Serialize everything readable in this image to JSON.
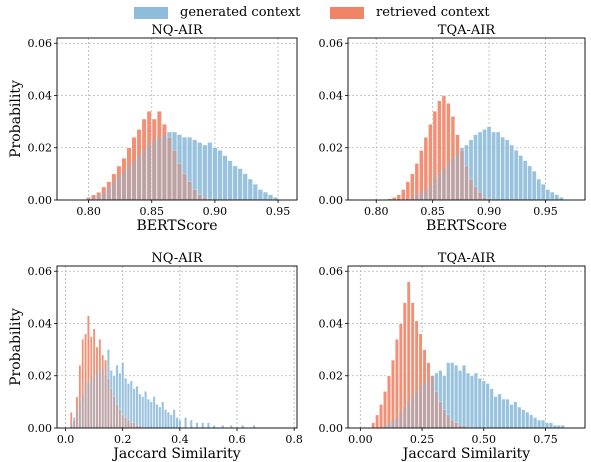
{
  "legend": {
    "generated_label": "generated context",
    "retrieved_label": "retrieved context"
  },
  "colors": {
    "generated": "#8fbcdb",
    "retrieved": "#f08466",
    "grid": "#b5b5b5",
    "axis": "#000000"
  },
  "chart_data": [
    {
      "type": "bar",
      "title": "NQ-AIR",
      "xlabel": "BERTScore",
      "ylabel": "Probability",
      "xlim": [
        0.775,
        0.965
      ],
      "ylim": [
        0,
        0.062
      ],
      "xticks": [
        0.8,
        0.85,
        0.9,
        0.95
      ],
      "xtick_labels": [
        "0.80",
        "0.85",
        "0.90",
        "0.95"
      ],
      "yticks": [
        0,
        0.02,
        0.04,
        0.06
      ],
      "ytick_labels": [
        "0.00",
        "0.02",
        "0.04",
        "0.06"
      ],
      "grid": true,
      "bin_width": 0.004,
      "series": [
        {
          "name": "generated context",
          "x": [
            0.8,
            0.804,
            0.808,
            0.812,
            0.816,
            0.82,
            0.824,
            0.828,
            0.832,
            0.836,
            0.84,
            0.844,
            0.848,
            0.852,
            0.856,
            0.86,
            0.864,
            0.868,
            0.872,
            0.876,
            0.88,
            0.884,
            0.888,
            0.892,
            0.896,
            0.9,
            0.904,
            0.908,
            0.912,
            0.916,
            0.92,
            0.924,
            0.928,
            0.932,
            0.936,
            0.94,
            0.944,
            0.948
          ],
          "values": [
            0.0005,
            0.001,
            0.002,
            0.003,
            0.005,
            0.007,
            0.009,
            0.011,
            0.013,
            0.015,
            0.017,
            0.019,
            0.021,
            0.023,
            0.024,
            0.025,
            0.026,
            0.026,
            0.025,
            0.024,
            0.024,
            0.023,
            0.022,
            0.021,
            0.022,
            0.02,
            0.019,
            0.017,
            0.015,
            0.013,
            0.012,
            0.01,
            0.008,
            0.006,
            0.004,
            0.003,
            0.002,
            0.001
          ]
        },
        {
          "name": "retrieved context",
          "x": [
            0.8,
            0.804,
            0.808,
            0.812,
            0.816,
            0.82,
            0.824,
            0.828,
            0.832,
            0.836,
            0.84,
            0.844,
            0.848,
            0.852,
            0.856,
            0.86,
            0.864,
            0.868,
            0.872,
            0.876,
            0.88,
            0.884,
            0.888,
            0.892,
            0.896
          ],
          "values": [
            0.001,
            0.002,
            0.003,
            0.005,
            0.007,
            0.01,
            0.013,
            0.016,
            0.02,
            0.024,
            0.027,
            0.031,
            0.034,
            0.031,
            0.034,
            0.029,
            0.024,
            0.019,
            0.014,
            0.01,
            0.007,
            0.004,
            0.002,
            0.001,
            0.0005
          ]
        }
      ]
    },
    {
      "type": "bar",
      "title": "TQA-AIR",
      "xlabel": "BERTScore",
      "ylabel": "",
      "xlim": [
        0.775,
        0.985
      ],
      "ylim": [
        0,
        0.062
      ],
      "xticks": [
        0.8,
        0.85,
        0.9,
        0.95
      ],
      "xtick_labels": [
        "0.80",
        "0.85",
        "0.90",
        "0.95"
      ],
      "yticks": [
        0,
        0.02,
        0.04,
        0.06
      ],
      "ytick_labels": [
        "0.00",
        "0.02",
        "0.04",
        "0.06"
      ],
      "grid": true,
      "bin_width": 0.004,
      "series": [
        {
          "name": "generated context",
          "x": [
            0.832,
            0.836,
            0.84,
            0.844,
            0.848,
            0.852,
            0.856,
            0.86,
            0.864,
            0.868,
            0.872,
            0.876,
            0.88,
            0.884,
            0.888,
            0.892,
            0.896,
            0.9,
            0.904,
            0.908,
            0.912,
            0.916,
            0.92,
            0.924,
            0.928,
            0.932,
            0.936,
            0.94,
            0.944,
            0.948,
            0.952,
            0.956,
            0.96,
            0.964
          ],
          "values": [
            0.001,
            0.002,
            0.003,
            0.004,
            0.006,
            0.008,
            0.01,
            0.012,
            0.014,
            0.016,
            0.018,
            0.02,
            0.021,
            0.023,
            0.025,
            0.026,
            0.027,
            0.028,
            0.026,
            0.026,
            0.024,
            0.023,
            0.021,
            0.019,
            0.017,
            0.015,
            0.013,
            0.011,
            0.008,
            0.006,
            0.004,
            0.003,
            0.002,
            0.001
          ]
        },
        {
          "name": "retrieved context",
          "x": [
            0.812,
            0.816,
            0.82,
            0.824,
            0.828,
            0.832,
            0.836,
            0.84,
            0.844,
            0.848,
            0.852,
            0.856,
            0.86,
            0.864,
            0.868,
            0.872,
            0.876,
            0.88,
            0.884,
            0.888,
            0.892,
            0.896,
            0.9
          ],
          "values": [
            0.0005,
            0.001,
            0.002,
            0.004,
            0.007,
            0.01,
            0.014,
            0.019,
            0.024,
            0.029,
            0.034,
            0.038,
            0.04,
            0.037,
            0.032,
            0.025,
            0.019,
            0.013,
            0.008,
            0.005,
            0.003,
            0.001,
            0.0005
          ]
        }
      ]
    },
    {
      "type": "bar",
      "title": "NQ-AIR",
      "xlabel": "Jaccard Similarity",
      "ylabel": "Probability",
      "xlim": [
        -0.03,
        0.81
      ],
      "ylim": [
        0,
        0.062
      ],
      "xticks": [
        0.0,
        0.2,
        0.4,
        0.6,
        0.8
      ],
      "xtick_labels": [
        "0.0",
        "0.2",
        "0.4",
        "0.6",
        "0.8"
      ],
      "yticks": [
        0,
        0.02,
        0.04,
        0.06
      ],
      "ytick_labels": [
        "0.00",
        "0.02",
        "0.04",
        "0.06"
      ],
      "grid": true,
      "bin_width": 0.01,
      "series": [
        {
          "name": "generated context",
          "x": [
            0.02,
            0.03,
            0.04,
            0.05,
            0.06,
            0.07,
            0.08,
            0.09,
            0.1,
            0.11,
            0.12,
            0.13,
            0.14,
            0.15,
            0.16,
            0.17,
            0.18,
            0.19,
            0.2,
            0.21,
            0.22,
            0.23,
            0.24,
            0.25,
            0.26,
            0.27,
            0.28,
            0.29,
            0.3,
            0.31,
            0.32,
            0.33,
            0.34,
            0.35,
            0.36,
            0.37,
            0.38,
            0.39,
            0.4,
            0.42,
            0.44,
            0.46,
            0.48,
            0.5,
            0.52,
            0.55,
            0.58,
            0.62,
            0.66
          ],
          "values": [
            0.002,
            0.004,
            0.007,
            0.01,
            0.013,
            0.018,
            0.017,
            0.02,
            0.019,
            0.022,
            0.021,
            0.023,
            0.02,
            0.03,
            0.022,
            0.02,
            0.024,
            0.021,
            0.025,
            0.019,
            0.017,
            0.018,
            0.015,
            0.016,
            0.013,
            0.012,
            0.014,
            0.011,
            0.01,
            0.012,
            0.009,
            0.008,
            0.01,
            0.007,
            0.006,
            0.005,
            0.007,
            0.004,
            0.003,
            0.004,
            0.003,
            0.002,
            0.002,
            0.002,
            0.001,
            0.001,
            0.001,
            0.001,
            0.001
          ]
        },
        {
          "name": "retrieved context",
          "x": [
            0.02,
            0.03,
            0.04,
            0.05,
            0.06,
            0.07,
            0.08,
            0.09,
            0.1,
            0.11,
            0.12,
            0.13,
            0.14,
            0.15,
            0.16,
            0.17,
            0.18,
            0.19,
            0.2,
            0.21,
            0.22,
            0.23,
            0.24,
            0.25,
            0.26
          ],
          "values": [
            0.006,
            0.003,
            0.012,
            0.024,
            0.034,
            0.036,
            0.043,
            0.035,
            0.038,
            0.031,
            0.034,
            0.028,
            0.026,
            0.019,
            0.015,
            0.012,
            0.009,
            0.007,
            0.005,
            0.004,
            0.003,
            0.002,
            0.002,
            0.001,
            0.001
          ]
        }
      ]
    },
    {
      "type": "bar",
      "title": "TQA-AIR",
      "xlabel": "Jaccard Similarity",
      "ylabel": "",
      "xlim": [
        -0.05,
        0.91
      ],
      "ylim": [
        0,
        0.062
      ],
      "xticks": [
        0.0,
        0.25,
        0.5,
        0.75
      ],
      "xtick_labels": [
        "0.00",
        "0.25",
        "0.50",
        "0.75"
      ],
      "yticks": [
        0,
        0.02,
        0.04,
        0.06
      ],
      "ytick_labels": [
        "0.00",
        "0.02",
        "0.04",
        "0.06"
      ],
      "grid": true,
      "bin_width": 0.016,
      "series": [
        {
          "name": "generated context",
          "x": [
            0.1,
            0.116,
            0.132,
            0.148,
            0.164,
            0.18,
            0.196,
            0.212,
            0.228,
            0.244,
            0.26,
            0.276,
            0.292,
            0.308,
            0.324,
            0.34,
            0.356,
            0.372,
            0.388,
            0.404,
            0.42,
            0.436,
            0.452,
            0.468,
            0.484,
            0.5,
            0.516,
            0.532,
            0.548,
            0.564,
            0.58,
            0.596,
            0.612,
            0.628,
            0.644,
            0.66,
            0.676,
            0.692,
            0.708,
            0.724,
            0.74,
            0.756,
            0.772,
            0.788,
            0.804,
            0.82
          ],
          "values": [
            0.001,
            0.002,
            0.003,
            0.004,
            0.006,
            0.008,
            0.01,
            0.012,
            0.014,
            0.016,
            0.017,
            0.018,
            0.02,
            0.021,
            0.022,
            0.02,
            0.025,
            0.025,
            0.024,
            0.022,
            0.024,
            0.021,
            0.02,
            0.021,
            0.019,
            0.018,
            0.017,
            0.015,
            0.012,
            0.013,
            0.011,
            0.011,
            0.009,
            0.01,
            0.008,
            0.007,
            0.006,
            0.005,
            0.004,
            0.003,
            0.003,
            0.002,
            0.002,
            0.001,
            0.001,
            0.001
          ]
        },
        {
          "name": "retrieved context",
          "x": [
            0.052,
            0.068,
            0.084,
            0.1,
            0.116,
            0.132,
            0.148,
            0.164,
            0.18,
            0.196,
            0.212,
            0.228,
            0.244,
            0.26,
            0.276,
            0.292,
            0.308,
            0.324,
            0.34,
            0.356,
            0.372,
            0.388,
            0.404,
            0.42
          ],
          "values": [
            0.002,
            0.005,
            0.009,
            0.014,
            0.02,
            0.026,
            0.034,
            0.04,
            0.048,
            0.056,
            0.048,
            0.041,
            0.036,
            0.03,
            0.025,
            0.02,
            0.014,
            0.01,
            0.007,
            0.005,
            0.003,
            0.002,
            0.001,
            0.001
          ]
        }
      ]
    }
  ]
}
